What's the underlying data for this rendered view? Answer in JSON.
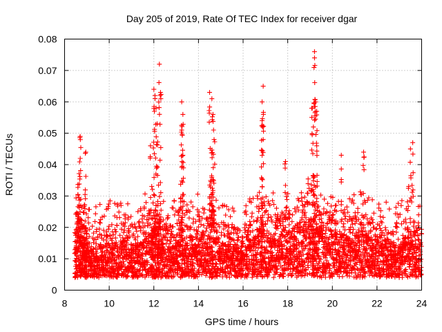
{
  "chart_data": {
    "type": "scatter",
    "title": "Day 205 of 2019, Rate Of TEC Index for receiver dgar",
    "xlabel": "GPS time / hours",
    "ylabel": "ROTI / TECUs",
    "xlim": [
      8,
      24
    ],
    "ylim": [
      0,
      0.08
    ],
    "xticks": [
      8,
      10,
      12,
      14,
      16,
      18,
      20,
      22,
      24
    ],
    "xtick_labels": [
      "8",
      "10",
      "12",
      "14",
      "16",
      "18",
      "20",
      "22",
      "24"
    ],
    "yticks": [
      0,
      0.01,
      0.02,
      0.03,
      0.04,
      0.05,
      0.06,
      0.07,
      0.08
    ],
    "ytick_labels": [
      "0",
      "0.01",
      "0.02",
      "0.03",
      "0.04",
      "0.05",
      "0.06",
      "0.07",
      "0.08"
    ],
    "grid": true,
    "marker": "+",
    "color": "#ff0000",
    "series": [
      {
        "name": "ROTI",
        "x": [
          8.5,
          8.55,
          8.6,
          8.65,
          8.7,
          8.75,
          8.8,
          8.85,
          8.9,
          8.95,
          9.0,
          9.1,
          9.2,
          9.3,
          9.4,
          9.5,
          9.6,
          9.7,
          9.8,
          9.9,
          10.0,
          10.1,
          10.2,
          10.3,
          10.4,
          10.5,
          10.6,
          10.7,
          10.8,
          10.9,
          11.0,
          11.1,
          11.2,
          11.3,
          11.4,
          11.5,
          11.6,
          11.7,
          11.8,
          11.9,
          11.95,
          12.0,
          12.05,
          12.1,
          12.15,
          12.2,
          12.25,
          12.3,
          12.4,
          12.5,
          12.6,
          12.7,
          12.8,
          12.9,
          13.0,
          13.1,
          13.2,
          13.25,
          13.3,
          13.4,
          13.5,
          13.6,
          13.7,
          13.8,
          13.9,
          14.0,
          14.1,
          14.2,
          14.3,
          14.4,
          14.5,
          14.55,
          14.6,
          14.65,
          14.7,
          14.8,
          14.9,
          15.0,
          15.1,
          15.2,
          15.3,
          15.4,
          15.5,
          15.6,
          15.7,
          15.8,
          15.9,
          16.0,
          16.1,
          16.2,
          16.3,
          16.4,
          16.5,
          16.6,
          16.7,
          16.8,
          16.85,
          16.9,
          17.0,
          17.1,
          17.2,
          17.3,
          17.4,
          17.5,
          17.6,
          17.7,
          17.8,
          17.9,
          18.0,
          18.1,
          18.2,
          18.3,
          18.4,
          18.5,
          18.6,
          18.7,
          18.8,
          18.9,
          19.0,
          19.1,
          19.15,
          19.2,
          19.25,
          19.3,
          19.4,
          19.5,
          19.6,
          19.7,
          19.8,
          19.9,
          20.0,
          20.1,
          20.2,
          20.3,
          20.4,
          20.5,
          20.6,
          20.7,
          20.8,
          20.9,
          21.0,
          21.1,
          21.2,
          21.3,
          21.4,
          21.5,
          21.6,
          21.7,
          21.8,
          21.9,
          22.0,
          22.1,
          22.2,
          22.3,
          22.4,
          22.5,
          22.6,
          22.7,
          22.8,
          22.9,
          23.0,
          23.1,
          23.2,
          23.3,
          23.4,
          23.5,
          23.6,
          23.7,
          23.8,
          23.9,
          24.0
        ],
        "y_typical": [
          0.012,
          0.018,
          0.022,
          0.025,
          0.02,
          0.016,
          0.014,
          0.013,
          0.015,
          0.012,
          0.011,
          0.012,
          0.011,
          0.01,
          0.012,
          0.011,
          0.013,
          0.012,
          0.01,
          0.011,
          0.013,
          0.012,
          0.012,
          0.014,
          0.012,
          0.013,
          0.014,
          0.016,
          0.013,
          0.012,
          0.013,
          0.012,
          0.013,
          0.014,
          0.013,
          0.014,
          0.015,
          0.015,
          0.016,
          0.015,
          0.018,
          0.02,
          0.018,
          0.016,
          0.017,
          0.018,
          0.02,
          0.016,
          0.014,
          0.013,
          0.014,
          0.013,
          0.012,
          0.013,
          0.014,
          0.016,
          0.018,
          0.02,
          0.018,
          0.014,
          0.013,
          0.012,
          0.013,
          0.014,
          0.013,
          0.015,
          0.016,
          0.016,
          0.015,
          0.016,
          0.018,
          0.02,
          0.022,
          0.02,
          0.016,
          0.015,
          0.014,
          0.013,
          0.014,
          0.013,
          0.012,
          0.013,
          0.012,
          0.013,
          0.012,
          0.011,
          0.012,
          0.011,
          0.012,
          0.013,
          0.014,
          0.015,
          0.014,
          0.016,
          0.017,
          0.018,
          0.02,
          0.018,
          0.016,
          0.015,
          0.014,
          0.015,
          0.016,
          0.015,
          0.014,
          0.016,
          0.018,
          0.017,
          0.016,
          0.017,
          0.016,
          0.017,
          0.018,
          0.018,
          0.019,
          0.018,
          0.02,
          0.02,
          0.02,
          0.022,
          0.024,
          0.022,
          0.02,
          0.019,
          0.018,
          0.017,
          0.016,
          0.016,
          0.015,
          0.016,
          0.016,
          0.017,
          0.016,
          0.015,
          0.016,
          0.017,
          0.016,
          0.016,
          0.015,
          0.014,
          0.015,
          0.016,
          0.015,
          0.016,
          0.018,
          0.017,
          0.016,
          0.015,
          0.014,
          0.013,
          0.014,
          0.013,
          0.013,
          0.012,
          0.013,
          0.012,
          0.012,
          0.011,
          0.012,
          0.013,
          0.012,
          0.013,
          0.014,
          0.016,
          0.018,
          0.016,
          0.014,
          0.013,
          0.012,
          0.012,
          0.012
        ],
        "peaks": [
          {
            "x": 8.7,
            "y": 0.049
          },
          {
            "x": 8.95,
            "y": 0.044
          },
          {
            "x": 12.0,
            "y": 0.064
          },
          {
            "x": 12.05,
            "y": 0.062
          },
          {
            "x": 12.1,
            "y": 0.058
          },
          {
            "x": 12.15,
            "y": 0.053
          },
          {
            "x": 12.25,
            "y": 0.072
          },
          {
            "x": 12.3,
            "y": 0.063
          },
          {
            "x": 13.25,
            "y": 0.06
          },
          {
            "x": 13.3,
            "y": 0.056
          },
          {
            "x": 13.25,
            "y": 0.051
          },
          {
            "x": 13.3,
            "y": 0.043
          },
          {
            "x": 14.5,
            "y": 0.063
          },
          {
            "x": 14.6,
            "y": 0.061
          },
          {
            "x": 14.65,
            "y": 0.056
          },
          {
            "x": 14.7,
            "y": 0.048
          },
          {
            "x": 16.9,
            "y": 0.065
          },
          {
            "x": 16.85,
            "y": 0.06
          },
          {
            "x": 16.85,
            "y": 0.054
          },
          {
            "x": 16.9,
            "y": 0.048
          },
          {
            "x": 19.2,
            "y": 0.076
          },
          {
            "x": 19.2,
            "y": 0.074
          },
          {
            "x": 19.25,
            "y": 0.06
          },
          {
            "x": 19.1,
            "y": 0.058
          },
          {
            "x": 19.3,
            "y": 0.057
          },
          {
            "x": 19.15,
            "y": 0.052
          },
          {
            "x": 19.3,
            "y": 0.046
          },
          {
            "x": 20.4,
            "y": 0.043
          },
          {
            "x": 21.4,
            "y": 0.044
          },
          {
            "x": 23.6,
            "y": 0.047
          },
          {
            "x": 23.5,
            "y": 0.045
          },
          {
            "x": 11.85,
            "y": 0.046
          },
          {
            "x": 17.9,
            "y": 0.041
          }
        ]
      }
    ]
  }
}
